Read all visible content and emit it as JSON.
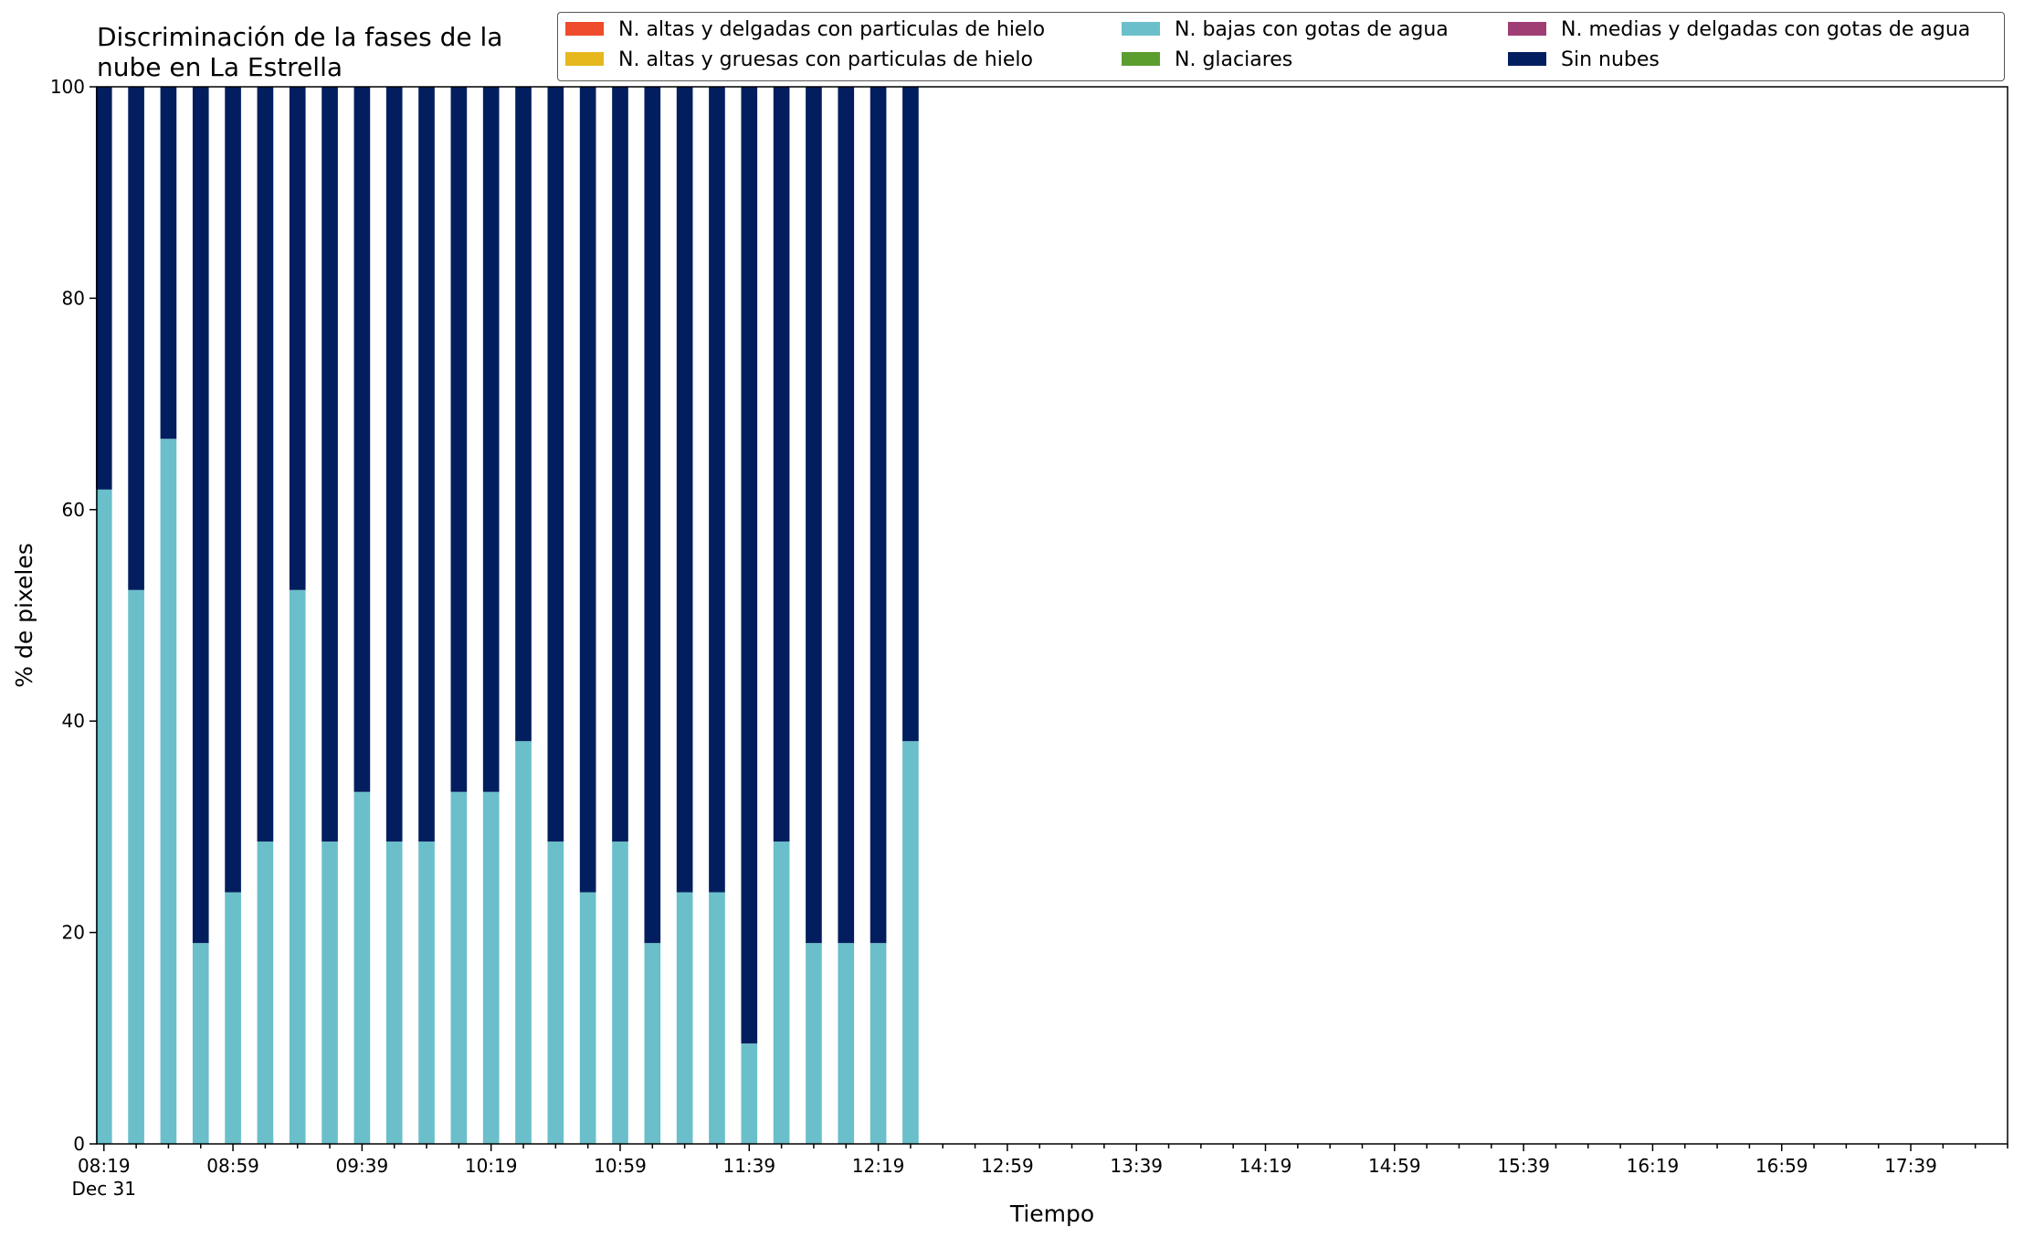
{
  "chart_data": {
    "type": "bar",
    "stacked": true,
    "title": "Discriminación de la fases de la\nnube en La Estrella",
    "xlabel": "Tiempo",
    "ylabel": "% de pixeles",
    "ylim": [
      0,
      100
    ],
    "yticks": [
      "0",
      "20",
      "40",
      "60",
      "80",
      "100"
    ],
    "xtick_labels": [
      "08:19",
      "08:59",
      "09:39",
      "10:19",
      "10:59",
      "11:39",
      "12:19",
      "12:59",
      "13:39",
      "14:19",
      "14:59",
      "15:39",
      "16:19",
      "16:59",
      "17:39"
    ],
    "x_date_label": "Dec 31",
    "x_range": [
      "08:19",
      "18:09"
    ],
    "bar_interval_minutes": 10,
    "legend_position": "top-right",
    "grid": false,
    "categories": [
      "08:19",
      "08:29",
      "08:39",
      "08:49",
      "08:59",
      "09:09",
      "09:19",
      "09:29",
      "09:39",
      "09:49",
      "09:59",
      "10:09",
      "10:19",
      "10:29",
      "10:39",
      "10:49",
      "10:59",
      "11:09",
      "11:19",
      "11:29",
      "11:39",
      "11:49",
      "11:59",
      "12:09",
      "12:19",
      "12:29"
    ],
    "series": [
      {
        "name": "N. altas y delgadas con particulas de hielo",
        "color": "#ee4c2c",
        "values": [
          0,
          0,
          0,
          0,
          0,
          0,
          0,
          0,
          0,
          0,
          0,
          0,
          0,
          0,
          0,
          0,
          0,
          0,
          0,
          0,
          0,
          0,
          0,
          0,
          0,
          0
        ]
      },
      {
        "name": "N. altas y gruesas con particulas de hielo",
        "color": "#e6b81e",
        "values": [
          0,
          0,
          0,
          0,
          0,
          0,
          0,
          0,
          0,
          0,
          0,
          0,
          0,
          0,
          0,
          0,
          0,
          0,
          0,
          0,
          0,
          0,
          0,
          0,
          0,
          0
        ]
      },
      {
        "name": "N. bajas con gotas de agua",
        "color": "#6abfca",
        "values": [
          61.9,
          52.4,
          66.7,
          19.0,
          23.8,
          28.6,
          52.4,
          28.6,
          33.3,
          28.6,
          28.6,
          33.3,
          33.3,
          38.1,
          28.6,
          23.8,
          28.6,
          19.0,
          23.8,
          23.8,
          9.5,
          28.6,
          19.0,
          19.0,
          19.0,
          38.1
        ]
      },
      {
        "name": "N. glaciares",
        "color": "#5c9e2e",
        "values": [
          0,
          0,
          0,
          0,
          0,
          0,
          0,
          0,
          0,
          0,
          0,
          0,
          0,
          0,
          0,
          0,
          0,
          0,
          0,
          0,
          0,
          0,
          0,
          0,
          0,
          0
        ]
      },
      {
        "name": "N. medias y delgadas con gotas de agua",
        "color": "#9e3e74",
        "values": [
          0,
          0,
          0,
          0,
          0,
          0,
          0,
          0,
          0,
          0,
          0,
          0,
          0,
          0,
          0,
          0,
          0,
          0,
          0,
          0,
          0,
          0,
          0,
          0,
          0,
          0
        ]
      },
      {
        "name": "Sin nubes",
        "color": "#031e5e",
        "values": [
          38.1,
          47.6,
          33.3,
          81.0,
          76.2,
          71.4,
          47.6,
          71.4,
          66.7,
          71.4,
          71.4,
          66.7,
          66.7,
          61.9,
          71.4,
          76.2,
          71.4,
          81.0,
          76.2,
          76.2,
          90.5,
          71.4,
          81.0,
          81.0,
          81.0,
          61.9
        ]
      }
    ]
  }
}
